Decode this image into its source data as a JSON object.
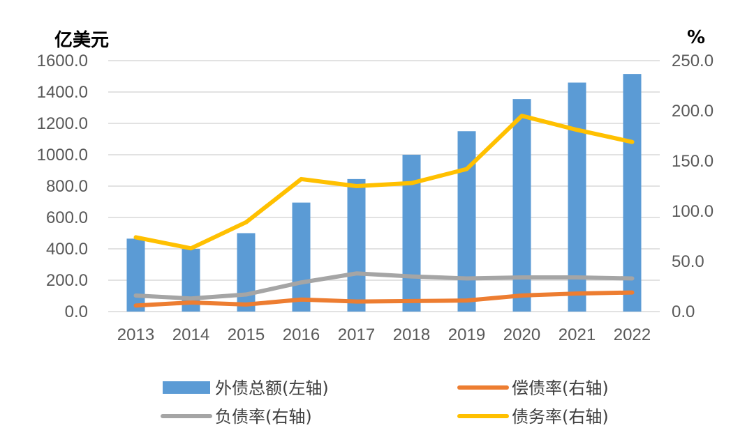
{
  "chart_data": {
    "type": "bar",
    "categories": [
      "2013",
      "2014",
      "2015",
      "2016",
      "2017",
      "2018",
      "2019",
      "2020",
      "2021",
      "2022"
    ],
    "left_axis": {
      "unit": "亿美元",
      "ylim": [
        0,
        1600
      ],
      "ticks": [
        "0.0",
        "200.0",
        "400.0",
        "600.0",
        "800.0",
        "1000.0",
        "1200.0",
        "1400.0",
        "1600.0"
      ]
    },
    "right_axis": {
      "unit": "%",
      "ylim": [
        0,
        250
      ],
      "ticks": [
        "0.0",
        "50.0",
        "100.0",
        "150.0",
        "200.0",
        "250.0"
      ]
    },
    "series": [
      {
        "name": "外债总额(左轴)",
        "kind": "bar",
        "axis": "left",
        "color": "#5b9bd5",
        "values": [
          465,
          400,
          500,
          695,
          845,
          1000,
          1150,
          1355,
          1460,
          1515
        ]
      },
      {
        "name": "偿债率(右轴)",
        "kind": "line",
        "axis": "right",
        "color": "#ed7d31",
        "values": [
          6,
          9,
          7,
          12,
          10,
          10.5,
          11,
          16,
          18,
          19
        ]
      },
      {
        "name": "负债率(右轴)",
        "kind": "line",
        "axis": "right",
        "color": "#a5a5a5",
        "values": [
          16,
          13,
          17,
          29,
          38,
          35,
          33,
          34,
          34,
          33
        ]
      },
      {
        "name": "债务率(右轴)",
        "kind": "line",
        "axis": "right",
        "color": "#ffc000",
        "values": [
          74,
          63,
          89,
          132,
          125,
          128,
          142,
          195,
          181,
          169
        ]
      }
    ],
    "legend_position": "bottom",
    "grid": true
  }
}
